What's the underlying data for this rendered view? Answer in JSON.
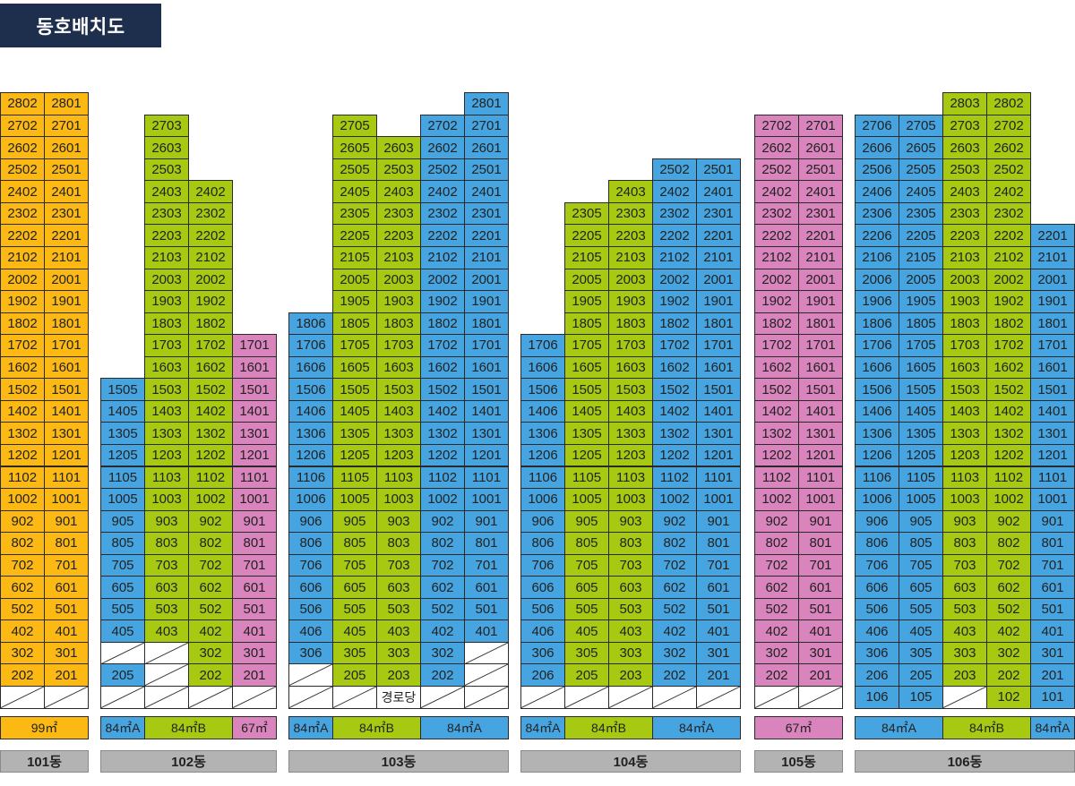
{
  "title": "동호배치도",
  "colors": {
    "orange": "#fdb913",
    "green": "#a7c912",
    "blue": "#46a5e0",
    "pink": "#d984bc",
    "gray": "#b3b3b3",
    "navy": "#1e2f4d"
  },
  "note_label": "경로당",
  "buildings": [
    {
      "name": "101동",
      "columns": [
        {
          "color": "orange",
          "top": 28,
          "units": [
            "02",
            "02",
            "02",
            "02",
            "02",
            "02",
            "02",
            "02",
            "02",
            "02",
            "02",
            "02",
            "02",
            "02",
            "02",
            "02",
            "02",
            "02",
            "02",
            "02",
            "02",
            "02",
            "02",
            "02",
            "02",
            "02",
            "02"
          ],
          "prefix": true,
          "suffix": "02"
        },
        {
          "color": "orange",
          "top": 28,
          "suffix": "01"
        }
      ],
      "types": [
        {
          "label": "99㎡",
          "color": "orange",
          "span": 2
        }
      ]
    },
    {
      "name": "102동",
      "columns": [
        {
          "color": "blue",
          "top": 15,
          "suffix": "05",
          "blank": [
            3
          ]
        },
        {
          "color": "green",
          "top": 27,
          "suffix": "03",
          "blank": [
            2,
            3
          ]
        },
        {
          "color": "green",
          "top": 24,
          "suffix": "02"
        },
        {
          "color": "pink",
          "top": 17,
          "suffix": "01"
        }
      ],
      "types": [
        {
          "label": "84㎡A",
          "color": "blue",
          "span": 1
        },
        {
          "label": "84㎡B",
          "color": "green",
          "span": 2
        },
        {
          "label": "67㎡",
          "color": "pink",
          "span": 1
        }
      ]
    },
    {
      "name": "103동",
      "columns": [
        {
          "color": "blue",
          "top": 18,
          "suffix": "06",
          "blank": [
            2
          ]
        },
        {
          "color": "green",
          "top": 27,
          "suffix": "05"
        },
        {
          "color": "green",
          "top": 26,
          "suffix": "03",
          "note": true
        },
        {
          "color": "blue",
          "top": 27,
          "suffix": "02"
        },
        {
          "color": "blue",
          "top": 28,
          "suffix": "01",
          "blank": [
            2,
            3
          ]
        }
      ],
      "types": [
        {
          "label": "84㎡A",
          "color": "blue",
          "span": 1
        },
        {
          "label": "84㎡B",
          "color": "green",
          "span": 2
        },
        {
          "label": "84㎡A",
          "color": "blue",
          "span": 2
        }
      ]
    },
    {
      "name": "104동",
      "columns": [
        {
          "color": "blue",
          "top": 17,
          "suffix": "06"
        },
        {
          "color": "green",
          "top": 23,
          "suffix": "05"
        },
        {
          "color": "green",
          "top": 24,
          "suffix": "03"
        },
        {
          "color": "blue",
          "top": 25,
          "suffix": "02"
        },
        {
          "color": "blue",
          "top": 25,
          "suffix": "01"
        }
      ],
      "types": [
        {
          "label": "84㎡A",
          "color": "blue",
          "span": 1
        },
        {
          "label": "84㎡B",
          "color": "green",
          "span": 2
        },
        {
          "label": "84㎡A",
          "color": "blue",
          "span": 2
        }
      ]
    },
    {
      "name": "105동",
      "columns": [
        {
          "color": "pink",
          "top": 27,
          "suffix": "02"
        },
        {
          "color": "pink",
          "top": 27,
          "suffix": "01"
        }
      ],
      "types": [
        {
          "label": "67㎡",
          "color": "pink",
          "span": 2
        }
      ]
    },
    {
      "name": "106동",
      "columns": [
        {
          "color": "blue",
          "top": 27,
          "suffix": "06",
          "first": 1
        },
        {
          "color": "blue",
          "top": 27,
          "suffix": "05",
          "first": 1
        },
        {
          "color": "green",
          "top": 28,
          "suffix": "03",
          "blank": [
            1
          ]
        },
        {
          "color": "green",
          "top": 28,
          "suffix": "02",
          "first": 1
        },
        {
          "color": "blue",
          "top": 22,
          "suffix": "01",
          "first": 1
        }
      ],
      "types": [
        {
          "label": "84㎡A",
          "color": "blue",
          "span": 2
        },
        {
          "label": "84㎡B",
          "color": "green",
          "span": 2
        },
        {
          "label": "84㎡A",
          "color": "blue",
          "span": 1
        }
      ]
    }
  ]
}
